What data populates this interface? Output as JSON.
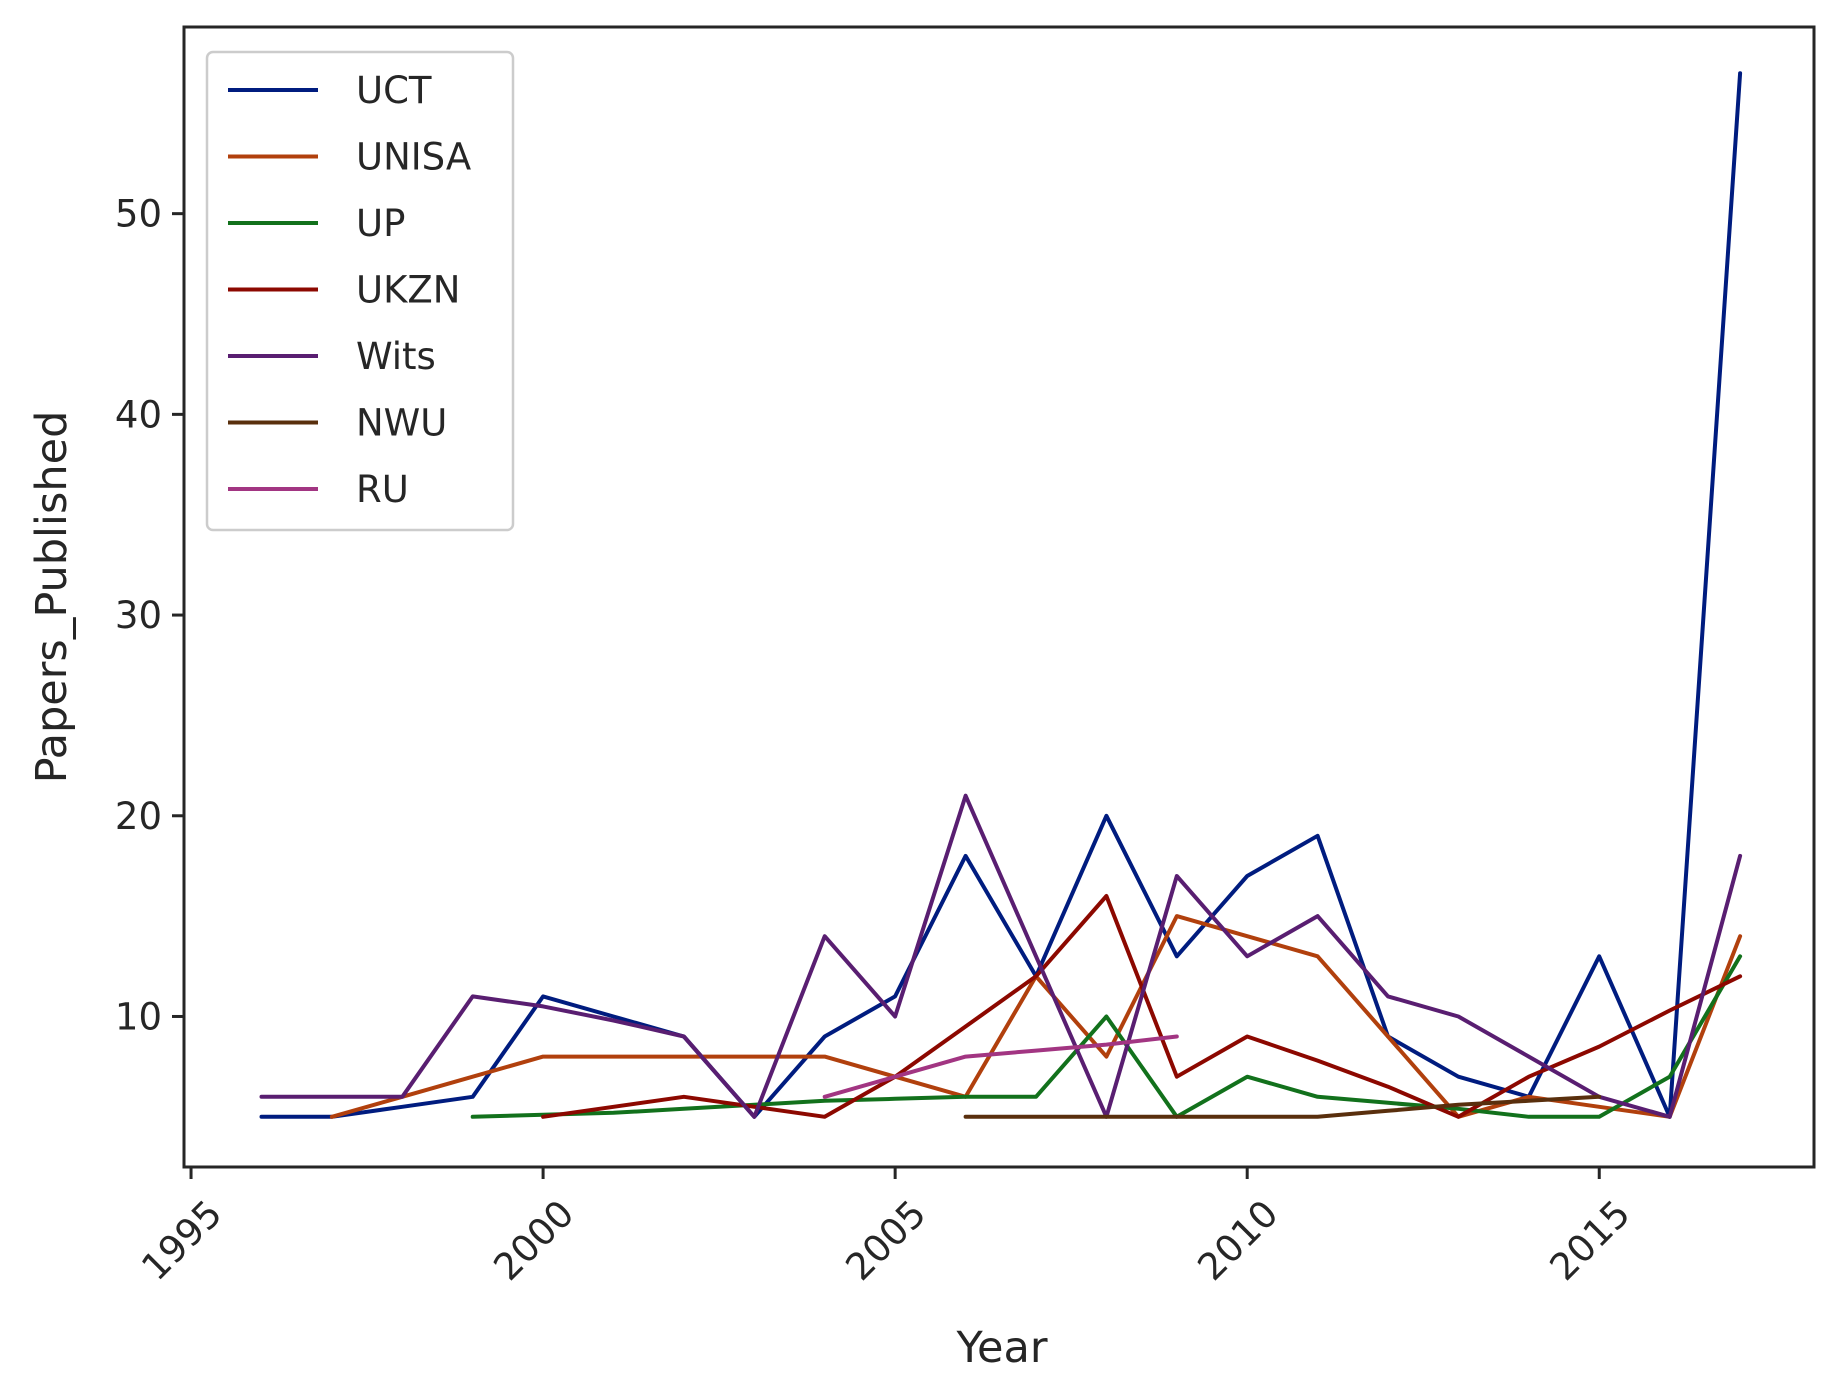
{
  "chart_data": {
    "type": "line",
    "xlabel": "Year",
    "ylabel": "Papers_Published",
    "xlim": [
      1994.9,
      2018.05
    ],
    "ylim": [
      2.5,
      59.3
    ],
    "xticks": [
      1995,
      2000,
      2005,
      2010,
      2015
    ],
    "yticks": [
      10,
      20,
      30,
      40,
      50
    ],
    "grid": false,
    "legend_position": "top-left",
    "series": [
      {
        "name": "UCT",
        "color": "#001c7f",
        "x": [
          1996,
          1997,
          1998,
          1999,
          2000,
          2001,
          2002,
          2003,
          2004,
          2005,
          2006,
          2007,
          2008,
          2009,
          2010,
          2011,
          2012,
          2013,
          2014,
          2015,
          2016,
          2017
        ],
        "y": [
          5,
          5,
          5.5,
          6,
          11,
          10,
          9,
          5,
          9,
          11,
          18,
          12,
          20,
          13,
          17,
          19,
          9,
          7,
          6,
          13,
          5,
          57
        ]
      },
      {
        "name": "UNISA",
        "color": "#b1400d",
        "x": [
          1997,
          1998,
          1999,
          2000,
          2001,
          2002,
          2003,
          2004,
          2005,
          2006,
          2007,
          2008,
          2009,
          2010,
          2011,
          2012,
          2013,
          2014,
          2015,
          2016,
          2017
        ],
        "y": [
          5,
          6,
          7,
          8,
          8,
          8,
          8,
          8,
          7,
          6,
          12,
          8,
          15,
          14,
          13,
          9,
          5,
          6,
          5.5,
          5,
          14
        ]
      },
      {
        "name": "UP",
        "color": "#12711c",
        "x": [
          1999,
          2000,
          2001,
          2002,
          2003,
          2004,
          2005,
          2006,
          2007,
          2008,
          2009,
          2010,
          2011,
          2012,
          2013,
          2014,
          2015,
          2016,
          2017
        ],
        "y": [
          5,
          5.1,
          5.2,
          5.4,
          5.6,
          5.8,
          5.9,
          6,
          6,
          10,
          5,
          7,
          6,
          5.7,
          5.4,
          5,
          5,
          7,
          13
        ]
      },
      {
        "name": "UKZN",
        "color": "#8c0800",
        "x": [
          2000,
          2002,
          2003,
          2004,
          2005,
          2006,
          2007,
          2008,
          2009,
          2010,
          2011,
          2012,
          2013,
          2014,
          2015,
          2016,
          2017
        ],
        "y": [
          5,
          6,
          5.5,
          5,
          7,
          9.5,
          12,
          16,
          7,
          9,
          7.8,
          6.5,
          5,
          7,
          8.5,
          10.3,
          12
        ]
      },
      {
        "name": "Wits",
        "color": "#591e71",
        "x": [
          1996,
          1997,
          1998,
          1999,
          2000,
          2001,
          2002,
          2003,
          2004,
          2005,
          2006,
          2007,
          2008,
          2009,
          2010,
          2011,
          2012,
          2013,
          2014,
          2015,
          2016,
          2017
        ],
        "y": [
          6,
          6,
          6,
          11,
          10.5,
          9.8,
          9,
          5,
          14,
          10,
          21,
          13,
          5,
          17,
          13,
          15,
          11,
          10,
          8,
          6,
          5,
          18
        ]
      },
      {
        "name": "NWU",
        "color": "#592f0d",
        "x": [
          2006,
          2007,
          2008,
          2009,
          2010,
          2011,
          2012,
          2013,
          2014,
          2015
        ],
        "y": [
          5,
          5,
          5,
          5,
          5,
          5,
          5.3,
          5.6,
          5.8,
          6
        ]
      },
      {
        "name": "RU",
        "color": "#a23582",
        "x": [
          2004,
          2005,
          2006,
          2007,
          2008,
          2009
        ],
        "y": [
          6,
          7,
          8,
          8.3,
          8.6,
          9
        ]
      }
    ]
  }
}
